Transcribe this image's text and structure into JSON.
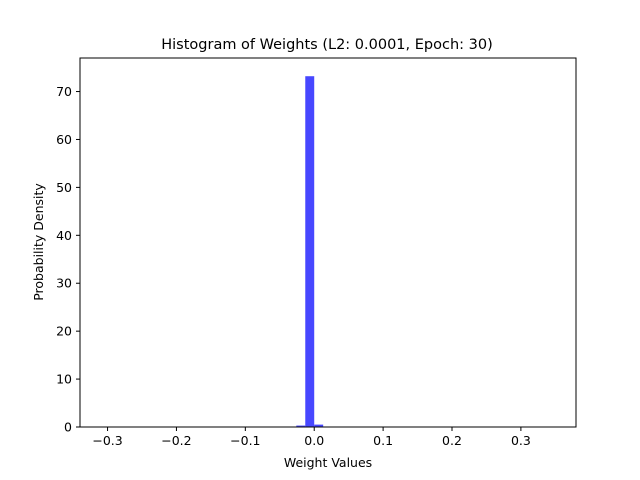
{
  "chart_data": {
    "type": "bar",
    "title": "Histogram of Weights (L2: 0.0001, Epoch: 30)",
    "xlabel": "Weight Values",
    "ylabel": "Probability Density",
    "xlim": [
      -0.34,
      0.38
    ],
    "ylim": [
      0,
      77
    ],
    "xticks": [
      -0.3,
      -0.2,
      -0.1,
      0.0,
      0.1,
      0.2,
      0.3
    ],
    "xtick_labels": [
      "−0.3",
      "−0.2",
      "−0.1",
      "0.0",
      "0.1",
      "0.2",
      "0.3"
    ],
    "yticks": [
      0,
      10,
      20,
      30,
      40,
      50,
      60,
      70
    ],
    "ytick_labels": [
      "0",
      "10",
      "20",
      "30",
      "40",
      "50",
      "60",
      "70"
    ],
    "bar_color": "#4747ff",
    "bins": [
      {
        "x0": -0.026,
        "x1": -0.013,
        "value": 0.3
      },
      {
        "x0": -0.013,
        "x1": 0.0,
        "value": 73.2
      },
      {
        "x0": 0.0,
        "x1": 0.013,
        "value": 0.5
      }
    ],
    "grid": false,
    "legend": "none"
  }
}
